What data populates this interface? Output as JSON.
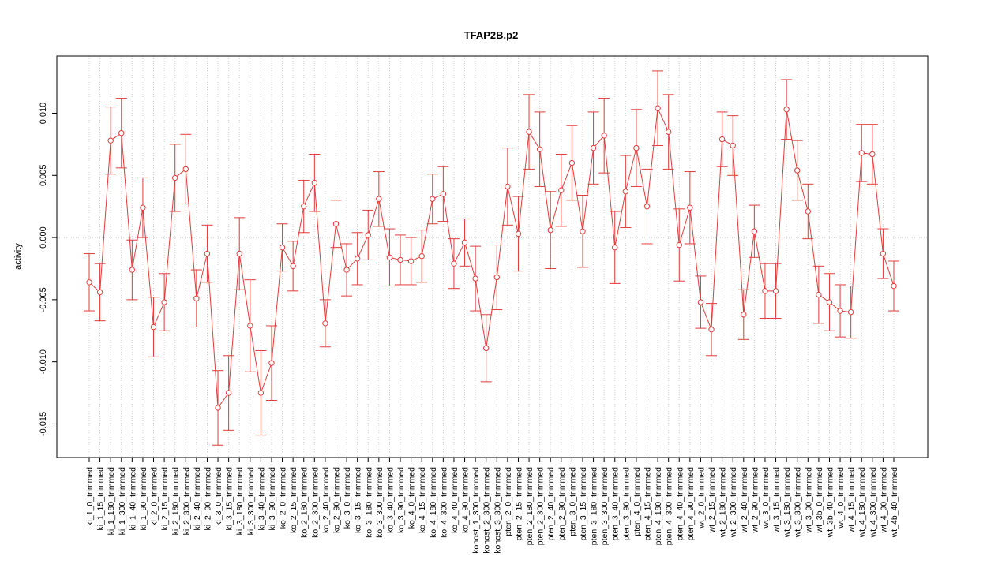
{
  "chart_data": {
    "type": "line",
    "title": "TFAP2B.p2",
    "y_label": "activity",
    "categories": [
      "ki_1_0_trimmed",
      "ki_1_15_trimmed",
      "ki_1_180_trimmed",
      "ki_1_300_trimmed",
      "ki_1_40_trimmed",
      "ki_1_90_trimmed",
      "ki_2_0_trimmed",
      "ki_2_15_trimmed",
      "ki_2_180_trimmed",
      "ki_2_300_trimmed",
      "ki_2_40_trimmed",
      "ki_2_90_trimmed",
      "ki_3_0_trimmed",
      "ki_3_15_trimmed",
      "ki_3_180_trimmed",
      "ki_3_300_trimmed",
      "ki_3_40_trimmed",
      "ki_3_90_trimmed",
      "ko_2_0_trimmed",
      "ko_2_15_trimmed",
      "ko_2_180_trimmed",
      "ko_2_300_trimmed",
      "ko_2_40_trimmed",
      "ko_2_90_trimmed",
      "ko_3_0_trimmed",
      "ko_3_15_trimmed",
      "ko_3_180_trimmed",
      "ko_3_300_trimmed",
      "ko_3_40_trimmed",
      "ko_3_90_trimmed",
      "ko_4_0_trimmed",
      "ko_4_15_trimmed",
      "ko_4_180_trimmed",
      "ko_4_300_trimmed",
      "ko_4_40_trimmed",
      "ko_4_90_trimmed",
      "konost_1_300_trimmed",
      "konost_2_300_trimmed",
      "konost_3_300_trimmed",
      "pten_2_0_trimmed",
      "pten_2_15_trimmed",
      "pten_2_180_trimmed",
      "pten_2_300_trimmed",
      "pten_2_40_trimmed",
      "pten_2_90_trimmed",
      "pten_3_0_trimmed",
      "pten_3_15_trimmed",
      "pten_3_180_trimmed",
      "pten_3_300_trimmed",
      "pten_3_40_trimmed",
      "pten_3_90_trimmed",
      "pten_4_0_trimmed",
      "pten_4_15_trimmed",
      "pten_4_180_trimmed",
      "pten_4_300_trimmed",
      "pten_4_40_trimmed",
      "pten_4_90_trimmed",
      "wt_2_0_trimmed",
      "wt_2_15_trimmed",
      "wt_2_180_trimmed",
      "wt_2_300_trimmed",
      "wt_2_40_trimmed",
      "wt_2_90_trimmed",
      "wt_3_0_trimmed",
      "wt_3_15_trimmed",
      "wt_3_180_trimmed",
      "wt_3_300_trimmed",
      "wt_3_90_trimmed",
      "wt_3b_0_trimmed",
      "wt_3b_40_trimmed",
      "wt_4_0_trimmed",
      "wt_4_15_trimmed",
      "wt_4_180_trimmed",
      "wt_4_300_trimmed",
      "wt_4_90_trimmed",
      "wt_4b_40_trimmed"
    ],
    "values": [
      -0.0036,
      -0.0044,
      0.0078,
      0.0084,
      -0.0026,
      0.0024,
      -0.0072,
      -0.0052,
      0.0048,
      0.0055,
      -0.0049,
      -0.0013,
      -0.0137,
      -0.0125,
      -0.0013,
      -0.0071,
      -0.0125,
      -0.0101,
      -0.0008,
      -0.0023,
      0.0025,
      0.0044,
      -0.0069,
      0.0011,
      -0.0026,
      -0.0017,
      0.0002,
      0.0031,
      -0.0016,
      -0.0018,
      -0.0019,
      -0.0015,
      0.0031,
      0.0035,
      -0.0021,
      -0.0004,
      -0.0033,
      -0.0089,
      -0.0032,
      0.0041,
      0.0003,
      0.0085,
      0.0071,
      0.0006,
      0.0038,
      0.006,
      0.0005,
      0.0072,
      0.0082,
      -0.0008,
      0.0037,
      0.0072,
      0.0025,
      0.0104,
      0.0085,
      -0.0006,
      0.0024,
      -0.0052,
      -0.0074,
      0.0079,
      0.0074,
      -0.0062,
      0.0005,
      -0.0043,
      -0.0043,
      0.0103,
      0.0054,
      0.0021,
      -0.0046,
      -0.0052,
      -0.0059,
      -0.006,
      0.0068,
      0.0067,
      -0.0013,
      -0.0039
    ],
    "errors": [
      0.0023,
      0.0023,
      0.0027,
      0.0028,
      0.0024,
      0.0024,
      0.0024,
      0.0023,
      0.0027,
      0.0028,
      0.0023,
      0.0023,
      0.003,
      0.003,
      0.0029,
      0.0037,
      0.0034,
      0.003,
      0.0019,
      0.002,
      0.0021,
      0.0023,
      0.0019,
      0.0019,
      0.0021,
      0.0021,
      0.002,
      0.0022,
      0.0023,
      0.002,
      0.0019,
      0.0021,
      0.002,
      0.0022,
      0.002,
      0.0019,
      0.0026,
      0.0027,
      0.0026,
      0.0031,
      0.003,
      0.003,
      0.003,
      0.0031,
      0.0029,
      0.003,
      0.0029,
      0.0029,
      0.003,
      0.0029,
      0.0029,
      0.0031,
      0.003,
      0.003,
      0.003,
      0.0029,
      0.0029,
      0.0021,
      0.0021,
      0.0022,
      0.0024,
      0.002,
      0.0021,
      0.0022,
      0.0022,
      0.0024,
      0.0024,
      0.0022,
      0.0023,
      0.0023,
      0.0021,
      0.0021,
      0.0023,
      0.0024,
      0.002,
      0.002
    ],
    "color": "#e23b3b",
    "ylim": [
      -0.0177,
      0.0146
    ],
    "yticks": [
      -0.015,
      {
        "value": -0.01,
        "label": "-0.010"
      },
      -0.005,
      {
        "value": 0,
        "label": "0.000"
      },
      0.005,
      {
        "value": 0.01,
        "label": "0.010"
      }
    ],
    "grid": true,
    "hline": 0
  }
}
